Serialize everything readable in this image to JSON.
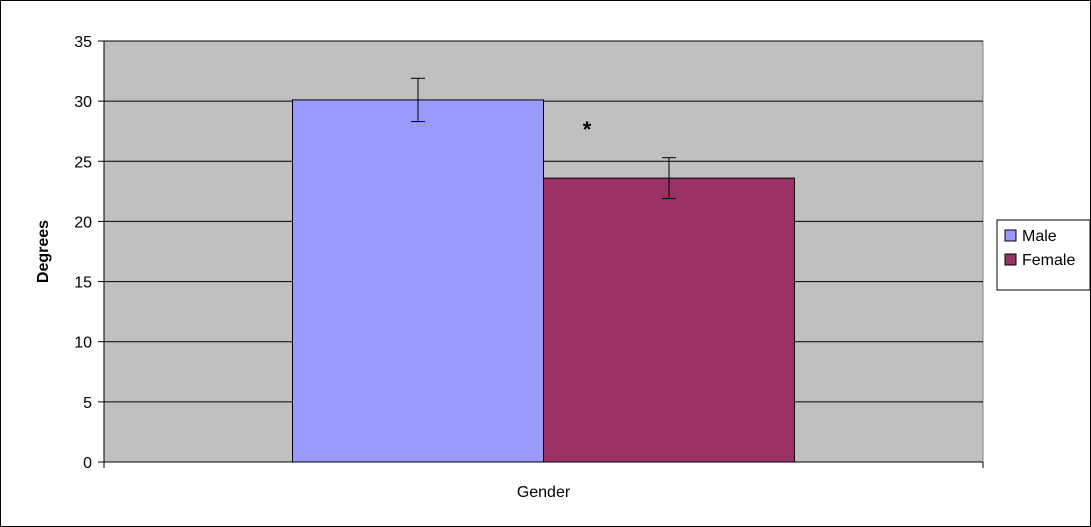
{
  "chart_data": {
    "type": "bar",
    "categories": [
      "Gender"
    ],
    "series": [
      {
        "name": "Male",
        "values": [
          30.1
        ],
        "error": [
          1.8
        ],
        "color": "#9999ff"
      },
      {
        "name": "Female",
        "values": [
          23.6
        ],
        "error": [
          1.7
        ],
        "color": "#993366"
      }
    ],
    "xlabel": "Gender",
    "ylabel": "Degrees",
    "ylim": [
      0,
      35
    ],
    "yticks": [
      0,
      5,
      10,
      15,
      20,
      25,
      30,
      35
    ],
    "annotation": "*",
    "grid": true,
    "legend": "right",
    "plot_background": "#c0c0c0"
  }
}
